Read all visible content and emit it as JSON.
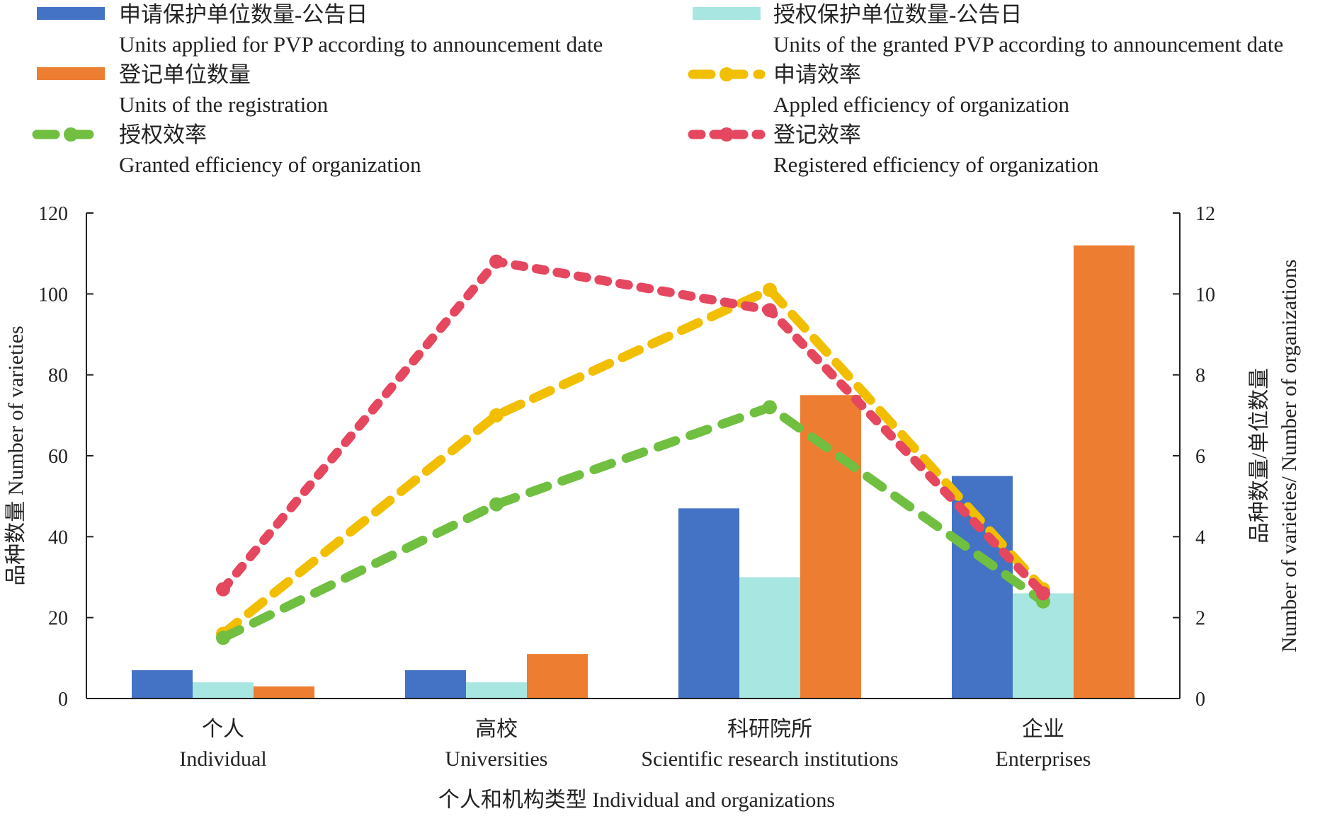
{
  "chart_data": {
    "type": "bar",
    "categories": [
      {
        "zh": "个人",
        "en": "Individual"
      },
      {
        "zh": "高校",
        "en": "Universities"
      },
      {
        "zh": "科研院所",
        "en": "Scientific research institutions"
      },
      {
        "zh": "企业",
        "en": "Enterprises"
      }
    ],
    "bar_series": [
      {
        "name_zh": "申请保护单位数量-公告日",
        "name_en": "Units applied for PVP according to announcement date",
        "color": "#4472C4",
        "values": [
          7,
          7,
          47,
          55
        ]
      },
      {
        "name_zh": "授权保护单位数量-公告日",
        "name_en": "Units of the granted PVP according to announcement date",
        "color": "#A8E6E2",
        "values": [
          4,
          4,
          30,
          26
        ]
      },
      {
        "name_zh": "登记单位数量",
        "name_en": "Units of the registration",
        "color": "#ED7D31",
        "values": [
          3,
          11,
          75,
          112
        ]
      }
    ],
    "line_series": [
      {
        "name_zh": "申请效率",
        "name_en": "Appled efficiency of organization",
        "color": "#F2BE00",
        "values": [
          1.6,
          7.0,
          10.1,
          2.7
        ]
      },
      {
        "name_zh": "授权效率",
        "name_en": "Granted efficiency of organization",
        "color": "#70BF41",
        "values": [
          1.5,
          4.8,
          7.2,
          2.4
        ]
      },
      {
        "name_zh": "登记效率",
        "name_en": "Registered efficiency of organization",
        "color": "#E5475F",
        "values": [
          2.7,
          10.8,
          9.6,
          2.6
        ]
      }
    ],
    "y_left": {
      "label_zh": "品种数量",
      "label_en": "Number of varieties",
      "lim": [
        0,
        120
      ],
      "ticks": [
        0,
        20,
        40,
        60,
        80,
        100,
        120
      ]
    },
    "y_right": {
      "label_zh": "品种数量/单位数量",
      "label_en": "Number of varieties/ Number of organizations",
      "lim": [
        0,
        12
      ],
      "ticks": [
        0,
        2,
        4,
        6,
        8,
        10,
        12
      ]
    },
    "x_label": {
      "zh": "个人和机构类型",
      "en": "Individual and organizations"
    },
    "legend_position": "top",
    "grid": false
  }
}
